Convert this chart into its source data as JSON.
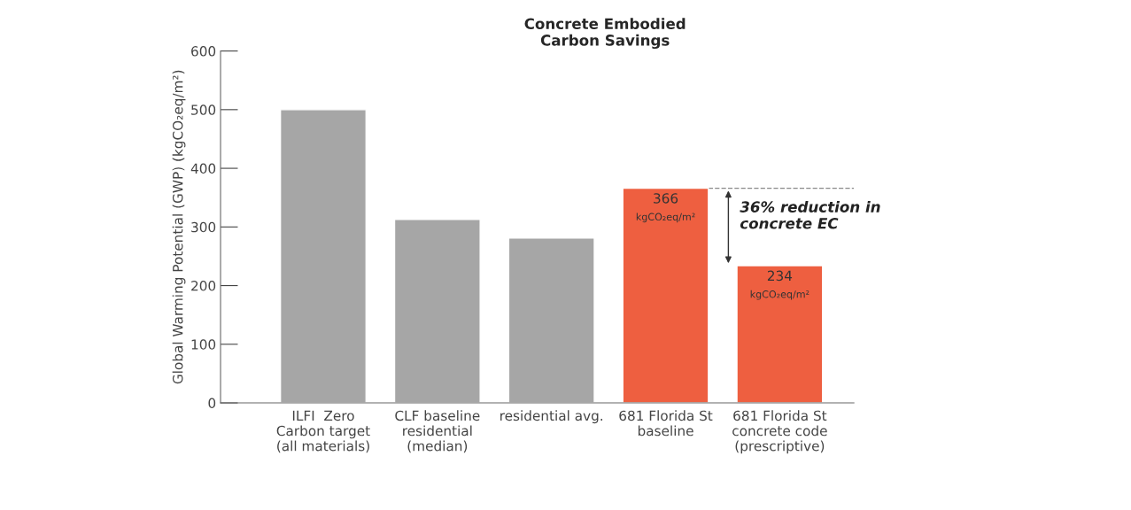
{
  "chart_data": {
    "type": "bar",
    "title": "Concrete Embodied\nCarbon Savings",
    "ylabel": "Global Warming Potential (GWP) (kgCO₂eq/m²)",
    "categories": [
      "ILFI  Zero\nCarbon target\n(all materials)",
      "CLF baseline\nresidential\n(median)",
      "residential avg.",
      "681 Florida St\nbaseline",
      "681 Florida St\nconcrete code\n(prescriptive)"
    ],
    "values": [
      500,
      313,
      281,
      366,
      234
    ],
    "colors": [
      "#a6a6a6",
      "#a6a6a6",
      "#a6a6a6",
      "#ee5f40",
      "#ee5f40"
    ],
    "value_labels": [
      null,
      null,
      null,
      "366\nkgCO₂eq/m²",
      "234\nkgCO₂eq/m²"
    ],
    "ylim": [
      0,
      600
    ],
    "yticks": [
      0,
      100,
      200,
      300,
      400,
      500,
      600
    ],
    "ref_lines": [
      {
        "axis": "y",
        "value": 366,
        "label": null,
        "line_style": "dashed",
        "color": "#888888"
      }
    ],
    "annotations": [
      "36% reduction in\nconcrete EC"
    ],
    "grid": false,
    "legend": false
  }
}
